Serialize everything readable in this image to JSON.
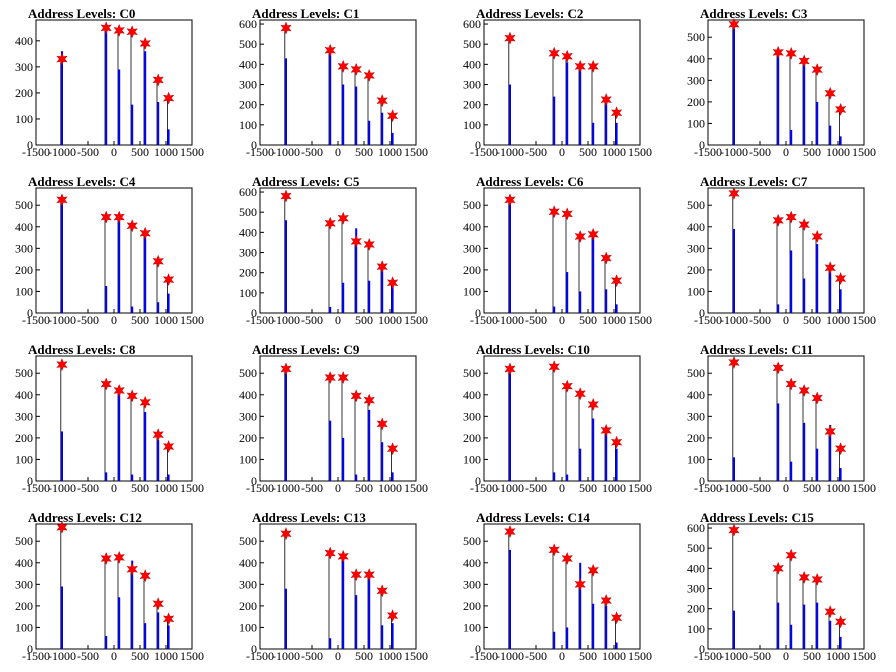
{
  "colors": {
    "bar": "#0000ff",
    "spike": "#000000",
    "marker": "#ff0000",
    "axis": "#000000",
    "background": "#ffffff"
  },
  "chart_data": [
    {
      "type": "bar",
      "title": "Address Levels: C0",
      "xlim": [
        -1500,
        1500
      ],
      "ylim": [
        0,
        480
      ],
      "yticks": [
        0,
        100,
        200,
        300,
        400
      ],
      "xticks": [
        -1500,
        -1000,
        -500,
        0,
        500,
        1000,
        1500
      ],
      "peaks": [
        {
          "x": -1000,
          "y": 330,
          "bar": 360
        },
        {
          "x": -150,
          "y": 450,
          "bar": 455
        },
        {
          "x": 100,
          "y": 440,
          "bar": 290
        },
        {
          "x": 350,
          "y": 435,
          "bar": 155
        },
        {
          "x": 600,
          "y": 390,
          "bar": 360
        },
        {
          "x": 850,
          "y": 250,
          "bar": 165
        },
        {
          "x": 1050,
          "y": 180,
          "bar": 60
        }
      ]
    },
    {
      "type": "bar",
      "title": "Address Levels: C1",
      "xlim": [
        -1500,
        1500
      ],
      "ylim": [
        0,
        620
      ],
      "yticks": [
        0,
        100,
        200,
        300,
        400,
        500,
        600
      ],
      "xticks": [
        -1500,
        -1000,
        -500,
        0,
        500,
        1000,
        1500
      ],
      "peaks": [
        {
          "x": -1000,
          "y": 580,
          "bar": 430
        },
        {
          "x": -150,
          "y": 470,
          "bar": 460
        },
        {
          "x": 100,
          "y": 390,
          "bar": 300
        },
        {
          "x": 350,
          "y": 375,
          "bar": 290
        },
        {
          "x": 600,
          "y": 345,
          "bar": 120
        },
        {
          "x": 850,
          "y": 220,
          "bar": 160
        },
        {
          "x": 1050,
          "y": 145,
          "bar": 60
        }
      ]
    },
    {
      "type": "bar",
      "title": "Address Levels: C2",
      "xlim": [
        -1500,
        1500
      ],
      "ylim": [
        0,
        620
      ],
      "yticks": [
        0,
        100,
        200,
        300,
        400,
        500,
        600
      ],
      "xticks": [
        -1500,
        -1000,
        -500,
        0,
        500,
        1000,
        1500
      ],
      "peaks": [
        {
          "x": -1000,
          "y": 530,
          "bar": 300
        },
        {
          "x": -150,
          "y": 455,
          "bar": 240
        },
        {
          "x": 100,
          "y": 440,
          "bar": 410
        },
        {
          "x": 350,
          "y": 390,
          "bar": 380
        },
        {
          "x": 600,
          "y": 390,
          "bar": 110
        },
        {
          "x": 850,
          "y": 225,
          "bar": 210
        },
        {
          "x": 1050,
          "y": 160,
          "bar": 110
        }
      ]
    },
    {
      "type": "bar",
      "title": "Address Levels: C3",
      "xlim": [
        -1500,
        1500
      ],
      "ylim": [
        0,
        580
      ],
      "yticks": [
        0,
        100,
        200,
        300,
        400,
        500
      ],
      "xticks": [
        -1500,
        -1000,
        -500,
        0,
        500,
        1000,
        1500
      ],
      "peaks": [
        {
          "x": -1000,
          "y": 560,
          "bar": 540
        },
        {
          "x": -150,
          "y": 430,
          "bar": 420
        },
        {
          "x": 100,
          "y": 425,
          "bar": 70
        },
        {
          "x": 350,
          "y": 390,
          "bar": 370
        },
        {
          "x": 600,
          "y": 350,
          "bar": 200
        },
        {
          "x": 850,
          "y": 240,
          "bar": 90
        },
        {
          "x": 1050,
          "y": 165,
          "bar": 40
        }
      ]
    },
    {
      "type": "bar",
      "title": "Address Levels: C4",
      "xlim": [
        -1500,
        1500
      ],
      "ylim": [
        0,
        580
      ],
      "yticks": [
        0,
        100,
        200,
        300,
        400,
        500
      ],
      "xticks": [
        -1500,
        -1000,
        -500,
        0,
        500,
        1000,
        1500
      ],
      "peaks": [
        {
          "x": -1000,
          "y": 525,
          "bar": 530
        },
        {
          "x": -150,
          "y": 445,
          "bar": 125
        },
        {
          "x": 100,
          "y": 445,
          "bar": 430
        },
        {
          "x": 350,
          "y": 405,
          "bar": 30
        },
        {
          "x": 600,
          "y": 370,
          "bar": 350
        },
        {
          "x": 850,
          "y": 240,
          "bar": 50
        },
        {
          "x": 1050,
          "y": 155,
          "bar": 90
        }
      ]
    },
    {
      "type": "bar",
      "title": "Address Levels: C5",
      "xlim": [
        -1500,
        1500
      ],
      "ylim": [
        0,
        620
      ],
      "yticks": [
        0,
        100,
        200,
        300,
        400,
        500,
        600
      ],
      "xticks": [
        -1500,
        -1000,
        -500,
        0,
        500,
        1000,
        1500
      ],
      "peaks": [
        {
          "x": -1000,
          "y": 580,
          "bar": 460
        },
        {
          "x": -150,
          "y": 445,
          "bar": 30
        },
        {
          "x": 100,
          "y": 470,
          "bar": 150
        },
        {
          "x": 350,
          "y": 355,
          "bar": 420
        },
        {
          "x": 600,
          "y": 340,
          "bar": 160
        },
        {
          "x": 850,
          "y": 230,
          "bar": 210
        },
        {
          "x": 1050,
          "y": 150,
          "bar": 140
        }
      ]
    },
    {
      "type": "bar",
      "title": "Address Levels: C6",
      "xlim": [
        -1500,
        1500
      ],
      "ylim": [
        0,
        580
      ],
      "yticks": [
        0,
        100,
        200,
        300,
        400,
        500
      ],
      "xticks": [
        -1500,
        -1000,
        -500,
        0,
        500,
        1000,
        1500
      ],
      "peaks": [
        {
          "x": -1000,
          "y": 525,
          "bar": 510
        },
        {
          "x": -150,
          "y": 470,
          "bar": 30
        },
        {
          "x": 100,
          "y": 460,
          "bar": 190
        },
        {
          "x": 350,
          "y": 355,
          "bar": 100
        },
        {
          "x": 600,
          "y": 365,
          "bar": 360
        },
        {
          "x": 850,
          "y": 255,
          "bar": 110
        },
        {
          "x": 1050,
          "y": 150,
          "bar": 40
        }
      ]
    },
    {
      "type": "bar",
      "title": "Address Levels: C7",
      "xlim": [
        -1500,
        1500
      ],
      "ylim": [
        0,
        580
      ],
      "yticks": [
        0,
        100,
        200,
        300,
        400,
        500
      ],
      "xticks": [
        -1500,
        -1000,
        -500,
        0,
        500,
        1000,
        1500
      ],
      "peaks": [
        {
          "x": -1000,
          "y": 555,
          "bar": 390
        },
        {
          "x": -150,
          "y": 430,
          "bar": 40
        },
        {
          "x": 100,
          "y": 445,
          "bar": 290
        },
        {
          "x": 350,
          "y": 410,
          "bar": 160
        },
        {
          "x": 600,
          "y": 355,
          "bar": 320
        },
        {
          "x": 850,
          "y": 210,
          "bar": 190
        },
        {
          "x": 1050,
          "y": 160,
          "bar": 110
        }
      ]
    },
    {
      "type": "bar",
      "title": "Address Levels: C8",
      "xlim": [
        -1500,
        1500
      ],
      "ylim": [
        0,
        580
      ],
      "yticks": [
        0,
        100,
        200,
        300,
        400,
        500
      ],
      "xticks": [
        -1500,
        -1000,
        -500,
        0,
        500,
        1000,
        1500
      ],
      "peaks": [
        {
          "x": -1000,
          "y": 540,
          "bar": 230
        },
        {
          "x": -150,
          "y": 450,
          "bar": 40
        },
        {
          "x": 100,
          "y": 420,
          "bar": 440
        },
        {
          "x": 350,
          "y": 395,
          "bar": 30
        },
        {
          "x": 600,
          "y": 365,
          "bar": 320
        },
        {
          "x": 850,
          "y": 215,
          "bar": 190
        },
        {
          "x": 1050,
          "y": 160,
          "bar": 30
        }
      ]
    },
    {
      "type": "bar",
      "title": "Address Levels: C9",
      "xlim": [
        -1500,
        1500
      ],
      "ylim": [
        0,
        580
      ],
      "yticks": [
        0,
        100,
        200,
        300,
        400,
        500
      ],
      "xticks": [
        -1500,
        -1000,
        -500,
        0,
        500,
        1000,
        1500
      ],
      "peaks": [
        {
          "x": -1000,
          "y": 520,
          "bar": 530
        },
        {
          "x": -150,
          "y": 480,
          "bar": 280
        },
        {
          "x": 100,
          "y": 480,
          "bar": 200
        },
        {
          "x": 350,
          "y": 395,
          "bar": 30
        },
        {
          "x": 600,
          "y": 375,
          "bar": 330
        },
        {
          "x": 850,
          "y": 265,
          "bar": 180
        },
        {
          "x": 1050,
          "y": 150,
          "bar": 40
        }
      ]
    },
    {
      "type": "bar",
      "title": "Address Levels: C10",
      "xlim": [
        -1500,
        1500
      ],
      "ylim": [
        0,
        580
      ],
      "yticks": [
        0,
        100,
        200,
        300,
        400,
        500
      ],
      "xticks": [
        -1500,
        -1000,
        -500,
        0,
        500,
        1000,
        1500
      ],
      "peaks": [
        {
          "x": -1000,
          "y": 520,
          "bar": 530
        },
        {
          "x": -150,
          "y": 530,
          "bar": 40
        },
        {
          "x": 100,
          "y": 440,
          "bar": 30
        },
        {
          "x": 350,
          "y": 405,
          "bar": 150
        },
        {
          "x": 600,
          "y": 355,
          "bar": 290
        },
        {
          "x": 850,
          "y": 235,
          "bar": 225
        },
        {
          "x": 1050,
          "y": 180,
          "bar": 150
        }
      ]
    },
    {
      "type": "bar",
      "title": "Address Levels: C11",
      "xlim": [
        -1500,
        1500
      ],
      "ylim": [
        0,
        580
      ],
      "yticks": [
        0,
        100,
        200,
        300,
        400,
        500
      ],
      "xticks": [
        -1500,
        -1000,
        -500,
        0,
        500,
        1000,
        1500
      ],
      "peaks": [
        {
          "x": -1000,
          "y": 550,
          "bar": 110
        },
        {
          "x": -150,
          "y": 525,
          "bar": 360
        },
        {
          "x": 100,
          "y": 450,
          "bar": 90
        },
        {
          "x": 350,
          "y": 420,
          "bar": 270
        },
        {
          "x": 600,
          "y": 385,
          "bar": 150
        },
        {
          "x": 850,
          "y": 230,
          "bar": 260
        },
        {
          "x": 1050,
          "y": 150,
          "bar": 60
        }
      ]
    },
    {
      "type": "bar",
      "title": "Address Levels: C12",
      "xlim": [
        -1500,
        1500
      ],
      "ylim": [
        0,
        580
      ],
      "yticks": [
        0,
        100,
        200,
        300,
        400,
        500
      ],
      "xticks": [
        -1500,
        -1000,
        -500,
        0,
        500,
        1000,
        1500
      ],
      "peaks": [
        {
          "x": -1000,
          "y": 565,
          "bar": 290
        },
        {
          "x": -150,
          "y": 420,
          "bar": 60
        },
        {
          "x": 100,
          "y": 425,
          "bar": 240
        },
        {
          "x": 350,
          "y": 370,
          "bar": 410
        },
        {
          "x": 600,
          "y": 340,
          "bar": 120
        },
        {
          "x": 850,
          "y": 210,
          "bar": 170
        },
        {
          "x": 1050,
          "y": 140,
          "bar": 110
        }
      ]
    },
    {
      "type": "bar",
      "title": "Address Levels: C13",
      "xlim": [
        -1500,
        1500
      ],
      "ylim": [
        0,
        580
      ],
      "yticks": [
        0,
        100,
        200,
        300,
        400,
        500
      ],
      "xticks": [
        -1500,
        -1000,
        -500,
        0,
        500,
        1000,
        1500
      ],
      "peaks": [
        {
          "x": -1000,
          "y": 535,
          "bar": 280
        },
        {
          "x": -150,
          "y": 445,
          "bar": 50
        },
        {
          "x": 100,
          "y": 430,
          "bar": 410
        },
        {
          "x": 350,
          "y": 345,
          "bar": 250
        },
        {
          "x": 600,
          "y": 345,
          "bar": 350
        },
        {
          "x": 850,
          "y": 270,
          "bar": 110
        },
        {
          "x": 1050,
          "y": 155,
          "bar": 120
        }
      ]
    },
    {
      "type": "bar",
      "title": "Address Levels: C14",
      "xlim": [
        -1500,
        1500
      ],
      "ylim": [
        0,
        580
      ],
      "yticks": [
        0,
        100,
        200,
        300,
        400,
        500
      ],
      "xticks": [
        -1500,
        -1000,
        -500,
        0,
        500,
        1000,
        1500
      ],
      "peaks": [
        {
          "x": -1000,
          "y": 545,
          "bar": 460
        },
        {
          "x": -150,
          "y": 460,
          "bar": 80
        },
        {
          "x": 100,
          "y": 420,
          "bar": 100
        },
        {
          "x": 350,
          "y": 300,
          "bar": 400
        },
        {
          "x": 600,
          "y": 365,
          "bar": 210
        },
        {
          "x": 850,
          "y": 225,
          "bar": 200
        },
        {
          "x": 1050,
          "y": 145,
          "bar": 30
        }
      ]
    },
    {
      "type": "bar",
      "title": "Address Levels: C15",
      "xlim": [
        -1500,
        1500
      ],
      "ylim": [
        0,
        620
      ],
      "yticks": [
        0,
        100,
        200,
        300,
        400,
        500,
        600
      ],
      "xticks": [
        -1500,
        -1000,
        -500,
        0,
        500,
        1000,
        1500
      ],
      "peaks": [
        {
          "x": -1000,
          "y": 590,
          "bar": 190
        },
        {
          "x": -150,
          "y": 400,
          "bar": 230
        },
        {
          "x": 100,
          "y": 465,
          "bar": 120
        },
        {
          "x": 350,
          "y": 355,
          "bar": 220
        },
        {
          "x": 600,
          "y": 345,
          "bar": 230
        },
        {
          "x": 850,
          "y": 185,
          "bar": 140
        },
        {
          "x": 1050,
          "y": 135,
          "bar": 60
        }
      ]
    }
  ]
}
